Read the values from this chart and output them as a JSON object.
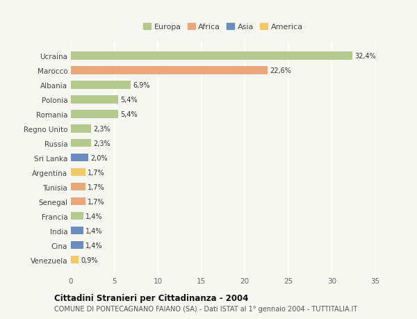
{
  "categories": [
    "Ucraina",
    "Marocco",
    "Albania",
    "Polonia",
    "Romania",
    "Regno Unito",
    "Russia",
    "Sri Lanka",
    "Argentina",
    "Tunisia",
    "Senegal",
    "Francia",
    "India",
    "Cina",
    "Venezuela"
  ],
  "values": [
    32.4,
    22.6,
    6.9,
    5.4,
    5.4,
    2.3,
    2.3,
    2.0,
    1.7,
    1.7,
    1.7,
    1.4,
    1.4,
    1.4,
    0.9
  ],
  "labels": [
    "32,4%",
    "22,6%",
    "6,9%",
    "5,4%",
    "5,4%",
    "2,3%",
    "2,3%",
    "2,0%",
    "1,7%",
    "1,7%",
    "1,7%",
    "1,4%",
    "1,4%",
    "1,4%",
    "0,9%"
  ],
  "continents": [
    "Europa",
    "Africa",
    "Europa",
    "Europa",
    "Europa",
    "Europa",
    "Europa",
    "Asia",
    "America",
    "Africa",
    "Africa",
    "Europa",
    "Asia",
    "Asia",
    "America"
  ],
  "colors": {
    "Europa": "#b5c98e",
    "Africa": "#e8a87c",
    "Asia": "#6b8cbf",
    "America": "#f0c96b"
  },
  "title": "Cittadini Stranieri per Cittadinanza - 2004",
  "subtitle": "COMUNE DI PONTECAGNANO FAIANO (SA) - Dati ISTAT al 1° gennaio 2004 - TUTTITALIA.IT",
  "xlim": [
    0,
    35
  ],
  "xticks": [
    0,
    5,
    10,
    15,
    20,
    25,
    30,
    35
  ],
  "background_color": "#f7f7f2",
  "bar_height": 0.55
}
